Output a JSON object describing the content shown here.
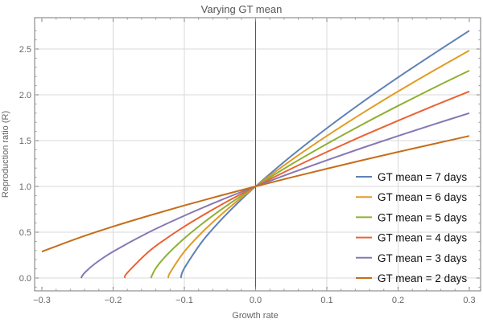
{
  "chart_data": {
    "type": "line",
    "title": "Varying GT mean",
    "xlabel": "Growth rate",
    "ylabel": "Reproduction ratio (R)",
    "xlim": [
      -0.3,
      0.3
    ],
    "ylim": [
      -0.13,
      2.8
    ],
    "grid": true,
    "legend_position": "bottom-right",
    "x_ticks": [
      "-0.3",
      "-0.2",
      "-0.1",
      "0.0",
      "0.1",
      "0.2",
      "0.3"
    ],
    "y_ticks": [
      "0.0",
      "0.5",
      "1.0",
      "1.5",
      "2.0",
      "2.5"
    ],
    "series": [
      {
        "name": "GT mean = 7 days",
        "color": "#5E81B5",
        "x": [
          -0.105,
          -0.1,
          -0.075,
          -0.05,
          -0.025,
          0,
          0.05,
          0.1,
          0.15,
          0.2,
          0.25,
          0.3
        ],
        "y": [
          0,
          0.107,
          0.398,
          0.622,
          0.819,
          1,
          1.331,
          1.635,
          1.92,
          2.19,
          2.448,
          2.7
        ]
      },
      {
        "name": "GT mean = 6 days",
        "color": "#E19C24",
        "x": [
          -0.1225,
          -0.12,
          -0.1,
          -0.075,
          -0.05,
          -0.025,
          0,
          0.05,
          0.1,
          0.15,
          0.2,
          0.25,
          0.3
        ],
        "y": [
          0,
          0.057,
          0.288,
          0.499,
          0.68,
          0.846,
          1,
          1.286,
          1.551,
          1.8,
          2.037,
          2.264,
          2.484
        ]
      },
      {
        "name": "GT mean = 5 days",
        "color": "#8FB032",
        "x": [
          -0.147,
          -0.14,
          -0.125,
          -0.1,
          -0.075,
          -0.05,
          -0.025,
          0,
          0.05,
          0.1,
          0.15,
          0.2,
          0.25,
          0.3
        ],
        "y": [
          0,
          0.107,
          0.248,
          0.433,
          0.592,
          0.737,
          0.872,
          1,
          1.24,
          1.464,
          1.677,
          1.88,
          2.076,
          2.264
        ]
      },
      {
        "name": "GT mean = 4 days",
        "color": "#EB6235",
        "x": [
          -0.1838,
          -0.18,
          -0.15,
          -0.125,
          -0.1,
          -0.075,
          -0.05,
          -0.025,
          0,
          0.05,
          0.1,
          0.15,
          0.2,
          0.25,
          0.3
        ],
        "y": [
          0,
          0.057,
          0.288,
          0.433,
          0.562,
          0.68,
          0.792,
          0.898,
          1,
          1.193,
          1.376,
          1.551,
          1.718,
          1.88,
          2.037
        ]
      },
      {
        "name": "GT mean = 3 days",
        "color": "#8778B3",
        "x": [
          -0.245,
          -0.24,
          -0.225,
          -0.2,
          -0.15,
          -0.1,
          -0.05,
          0,
          0.05,
          0.1,
          0.15,
          0.2,
          0.25,
          0.3
        ],
        "y": [
          0,
          0.057,
          0.159,
          0.288,
          0.499,
          0.68,
          0.846,
          1,
          1.146,
          1.286,
          1.421,
          1.551,
          1.677,
          1.8
        ]
      },
      {
        "name": "GT mean = 2 days",
        "color": "#C56E1A",
        "x": [
          -0.3,
          -0.25,
          -0.2,
          -0.15,
          -0.1,
          -0.05,
          0,
          0.05,
          0.1,
          0.15,
          0.2,
          0.25,
          0.3
        ],
        "y": [
          0.288,
          0.433,
          0.562,
          0.68,
          0.792,
          0.898,
          1,
          1.098,
          1.193,
          1.286,
          1.376,
          1.464,
          1.551
        ]
      }
    ]
  }
}
